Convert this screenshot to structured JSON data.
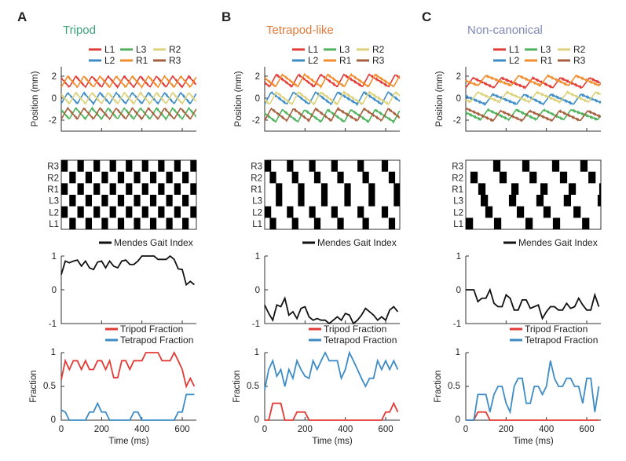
{
  "colors": {
    "L1": "#e23a35",
    "L2": "#3d8cc6",
    "L3": "#4db25a",
    "R1": "#f08d2c",
    "R2": "#dcd27a",
    "R3": "#a65f3d",
    "mgi": "#111111",
    "tripod": "#e23a35",
    "tetrapod": "#3d8cc6"
  },
  "legs_legend": [
    "L1",
    "L3",
    "R2",
    "L2",
    "R1",
    "R3"
  ],
  "gait_rows": [
    "R3",
    "R2",
    "R1",
    "L3",
    "L2",
    "L1"
  ],
  "labels": {
    "position_y": "Position (mm)",
    "fraction_y": "Fraction",
    "time_x": "Time (ms)",
    "mgi_legend": "Mendes Gait Index",
    "tripod_legend": "Tripod Fraction",
    "tetrapod_legend": "Tetrapod Fraction"
  },
  "position_ticks": [
    "2",
    "0",
    "-2"
  ],
  "mgi_ticks": [
    "1",
    "0",
    "-1"
  ],
  "fraction_ticks": [
    "1",
    "0.5",
    "0"
  ],
  "time_ticks": [
    "0",
    "200",
    "400",
    "600"
  ],
  "chart_data": [
    {
      "panel": "A",
      "title": "Tripod",
      "title_color": "#3aa37a",
      "type": "line",
      "xlim": [
        0,
        670
      ],
      "position_ylim": [
        -3,
        3
      ],
      "mgi_ylim": [
        -1,
        1
      ],
      "fraction_ylim": [
        0,
        1
      ],
      "position_mean_mm": {
        "L1": 1.5,
        "L2": 0,
        "L3": -1.4,
        "R1": 1.5,
        "R2": 0,
        "R3": -1.4
      },
      "position_amplitude_mm": 0.5,
      "swing_duration_ms": 32,
      "swing_onsets_ms": {
        "R3": [
          0,
          80,
          160,
          240,
          320,
          400,
          480,
          560,
          640
        ],
        "R2": [
          40,
          120,
          200,
          280,
          360,
          440,
          520,
          600
        ],
        "R1": [
          0,
          80,
          160,
          240,
          320,
          400,
          480,
          560,
          640
        ],
        "L3": [
          40,
          120,
          200,
          280,
          360,
          440,
          520,
          600
        ],
        "L2": [
          0,
          80,
          160,
          240,
          320,
          400,
          480,
          560,
          640
        ],
        "L1": [
          40,
          120,
          200,
          280,
          360,
          440,
          520,
          600
        ]
      },
      "time_ms": [
        0,
        20,
        40,
        60,
        80,
        100,
        120,
        140,
        160,
        180,
        200,
        220,
        240,
        260,
        280,
        300,
        320,
        340,
        360,
        380,
        400,
        420,
        440,
        460,
        480,
        500,
        520,
        540,
        560,
        580,
        600,
        620,
        640,
        660
      ],
      "mgi": [
        0.45,
        0.85,
        0.8,
        0.85,
        0.88,
        0.7,
        0.85,
        0.65,
        0.6,
        0.82,
        0.85,
        0.65,
        0.85,
        0.7,
        0.65,
        0.85,
        0.88,
        0.75,
        0.75,
        0.85,
        1,
        1,
        1,
        1,
        0.9,
        0.9,
        0.9,
        1,
        0.9,
        0.62,
        0.6,
        0.15,
        0.25,
        0.15
      ],
      "tripod_fraction": [
        0.6,
        0.88,
        0.75,
        0.88,
        0.88,
        0.75,
        0.88,
        0.75,
        0.75,
        0.88,
        0.88,
        0.75,
        0.88,
        0.63,
        0.63,
        0.88,
        0.88,
        0.75,
        0.88,
        0.88,
        0.88,
        1,
        1,
        1,
        1,
        0.88,
        0.88,
        0.88,
        1,
        0.88,
        0.75,
        0.5,
        0.62,
        0.5
      ],
      "tetrapod_fraction": [
        0.15,
        0.12,
        0,
        0,
        0,
        0,
        0,
        0.12,
        0.12,
        0.25,
        0.12,
        0.12,
        0,
        0,
        0,
        0,
        0,
        0,
        0.12,
        0.12,
        0,
        0,
        0,
        0,
        0,
        0,
        0,
        0,
        0,
        0.12,
        0.12,
        0.38,
        0.38,
        0.38
      ]
    },
    {
      "panel": "B",
      "title": "Tetrapod-like",
      "title_color": "#e27a3a",
      "type": "line",
      "xlim": [
        0,
        670
      ],
      "position_ylim": [
        -3,
        3
      ],
      "mgi_ylim": [
        -1,
        1
      ],
      "fraction_ylim": [
        0,
        1
      ],
      "position_mean_mm": {
        "L1": 1.6,
        "L2": 0,
        "L3": -1.6,
        "R1": 1.6,
        "R2": 0,
        "R3": -1.5
      },
      "position_amplitude_mm": 0.55,
      "swing_duration_ms": 32,
      "swing_onsets_ms": {
        "R3": [
          0,
          110,
          220,
          330,
          460,
          580
        ],
        "R2": [
          25,
          135,
          245,
          360,
          485,
          615
        ],
        "R1": [
          55,
          165,
          280,
          395,
          515,
          640
        ],
        "L3": [
          55,
          165,
          280,
          395,
          515,
          640
        ],
        "L2": [
          0,
          110,
          220,
          330,
          460,
          580
        ],
        "L1": [
          25,
          135,
          245,
          360,
          485,
          615
        ]
      },
      "time_ms": [
        0,
        20,
        40,
        60,
        80,
        100,
        120,
        140,
        160,
        180,
        200,
        220,
        240,
        260,
        280,
        300,
        320,
        340,
        360,
        380,
        400,
        420,
        440,
        460,
        480,
        500,
        520,
        540,
        560,
        580,
        600,
        620,
        640,
        660
      ],
      "mgi": [
        -0.45,
        -0.7,
        -0.9,
        -0.45,
        -0.5,
        -0.25,
        -0.75,
        -0.65,
        -0.85,
        -0.55,
        -0.5,
        -0.8,
        -0.9,
        -0.85,
        -0.9,
        -0.9,
        -1,
        -0.9,
        -0.8,
        -0.9,
        -0.7,
        -0.75,
        -1,
        -0.9,
        -0.75,
        -0.55,
        -0.65,
        -0.75,
        -0.9,
        -0.8,
        -0.9,
        -0.6,
        -0.5,
        -0.65
      ],
      "tripod_fraction": [
        0,
        0,
        0.25,
        0.25,
        0.25,
        0,
        0,
        0,
        0.12,
        0.12,
        0.12,
        0,
        0,
        0,
        0,
        0,
        0,
        0,
        0,
        0,
        0,
        0,
        0,
        0,
        0,
        0,
        0,
        0,
        0,
        0,
        0.12,
        0.12,
        0.25,
        0.12
      ],
      "tetrapod_fraction": [
        0.45,
        0.75,
        0.88,
        0.65,
        0.75,
        0.5,
        0.75,
        0.62,
        0.88,
        0.75,
        0.65,
        0.62,
        0.88,
        0.75,
        0.88,
        1,
        0.88,
        0.88,
        0.88,
        0.62,
        0.75,
        1,
        0.88,
        0.75,
        0.62,
        0.5,
        0.62,
        0.62,
        0.88,
        0.75,
        0.88,
        0.75,
        0.88,
        0.75
      ]
    },
    {
      "panel": "C",
      "title": "Non-canonical",
      "title_color": "#8088b8",
      "type": "line",
      "xlim": [
        0,
        670
      ],
      "position_ylim": [
        -3,
        3
      ],
      "mgi_ylim": [
        -1,
        1
      ],
      "fraction_ylim": [
        0,
        1
      ],
      "position_mean_mm": {
        "L1": 1.4,
        "L2": -0.1,
        "L3": -1.5,
        "R1": 1.6,
        "R2": 0.1,
        "R3": -1.6
      },
      "position_amplitude_mm": 0.45,
      "swing_duration_ms": 36,
      "swing_onsets_ms": {
        "R3": [
          136,
          280,
          428,
          568
        ],
        "R2": [
          23,
          167,
          316,
          467,
          608
        ],
        "R1": [
          62,
          226,
          370,
          510,
          662
        ],
        "L3": [
          74,
          214,
          350,
          486,
          654
        ],
        "L2": [
          97,
          253,
          385,
          534
        ],
        "L1": [
          0,
          140,
          296,
          432,
          577
        ]
      },
      "time_ms": [
        0,
        20,
        40,
        60,
        80,
        100,
        120,
        140,
        160,
        180,
        200,
        220,
        240,
        260,
        280,
        300,
        320,
        340,
        360,
        380,
        400,
        420,
        440,
        460,
        480,
        500,
        520,
        540,
        560,
        580,
        600,
        620,
        640,
        660
      ],
      "mgi": [
        0,
        0,
        0,
        -0.35,
        -0.25,
        -0.25,
        0,
        -0.4,
        -0.5,
        -0.5,
        -0.15,
        -0.25,
        -0.6,
        -0.6,
        -0.3,
        -0.3,
        -0.55,
        -0.5,
        -0.45,
        -0.85,
        -0.65,
        -0.5,
        -0.5,
        -0.6,
        -0.6,
        -0.4,
        -0.55,
        -0.5,
        -0.25,
        -0.45,
        -0.6,
        -0.6,
        -0.15,
        -0.5
      ],
      "tripod_fraction": [
        0,
        0,
        0,
        0.12,
        0.12,
        0.12,
        0,
        0,
        0,
        0,
        0,
        0,
        0,
        0,
        0,
        0,
        0,
        0,
        0,
        0,
        0,
        0,
        0,
        0,
        0,
        0,
        0,
        0,
        0,
        0,
        0,
        0,
        0,
        0
      ],
      "tetrapod_fraction": [
        0,
        0,
        0,
        0.38,
        0.38,
        0.38,
        0.12,
        0.38,
        0.5,
        0.5,
        0.25,
        0.12,
        0.5,
        0.62,
        0.62,
        0.25,
        0.25,
        0.5,
        0.5,
        0.38,
        0.5,
        0.88,
        0.62,
        0.5,
        0.5,
        0.62,
        0.62,
        0.5,
        0.5,
        0.25,
        0.62,
        0.62,
        0.12,
        0.5
      ]
    }
  ]
}
